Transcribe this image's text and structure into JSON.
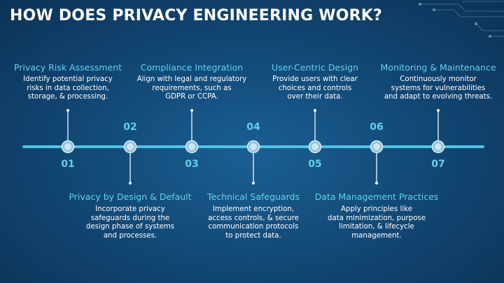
{
  "title": "HOW DOES PRIVACY ENGINEERING WORK?",
  "decoration": {
    "icon": "circuit-lines-icon"
  },
  "colors": {
    "accent": "#5fd3ea",
    "line": "#4fc4e4",
    "text": "#ffffff"
  },
  "steps": [
    {
      "num": "01",
      "label": "Privacy Risk Assessment",
      "desc": [
        "Identify potential privacy",
        "risks in data collection,",
        "storage, & processing."
      ],
      "side": "top"
    },
    {
      "num": "02",
      "label": "Privacy by Design & Default",
      "desc": [
        "Incorporate privacy",
        "safeguards during the",
        "design phase of systems",
        "and processes."
      ],
      "side": "bottom"
    },
    {
      "num": "03",
      "label": "Compliance Integration",
      "desc": [
        "Align with legal and regulatory",
        "requirements, such as",
        "GDPR or CCPA."
      ],
      "side": "top"
    },
    {
      "num": "04",
      "label": "Technical Safeguards",
      "desc": [
        "Implement encryption,",
        "access controls, & secure",
        "communication protocols",
        "to protect data."
      ],
      "side": "bottom"
    },
    {
      "num": "05",
      "label": "User-Centric Design",
      "desc": [
        "Provide users with clear",
        "choices and controls",
        "over their data."
      ],
      "side": "top"
    },
    {
      "num": "06",
      "label": "Data Management Practices",
      "desc": [
        "Apply principles like",
        "data minimization, purpose",
        "limitation, & lifecycle",
        "management."
      ],
      "side": "bottom"
    },
    {
      "num": "07",
      "label": "Monitoring & Maintenance",
      "desc": [
        "Continuously monitor",
        "systems for vulnerabilities",
        "and adapt to evolving threats."
      ],
      "side": "top"
    }
  ]
}
